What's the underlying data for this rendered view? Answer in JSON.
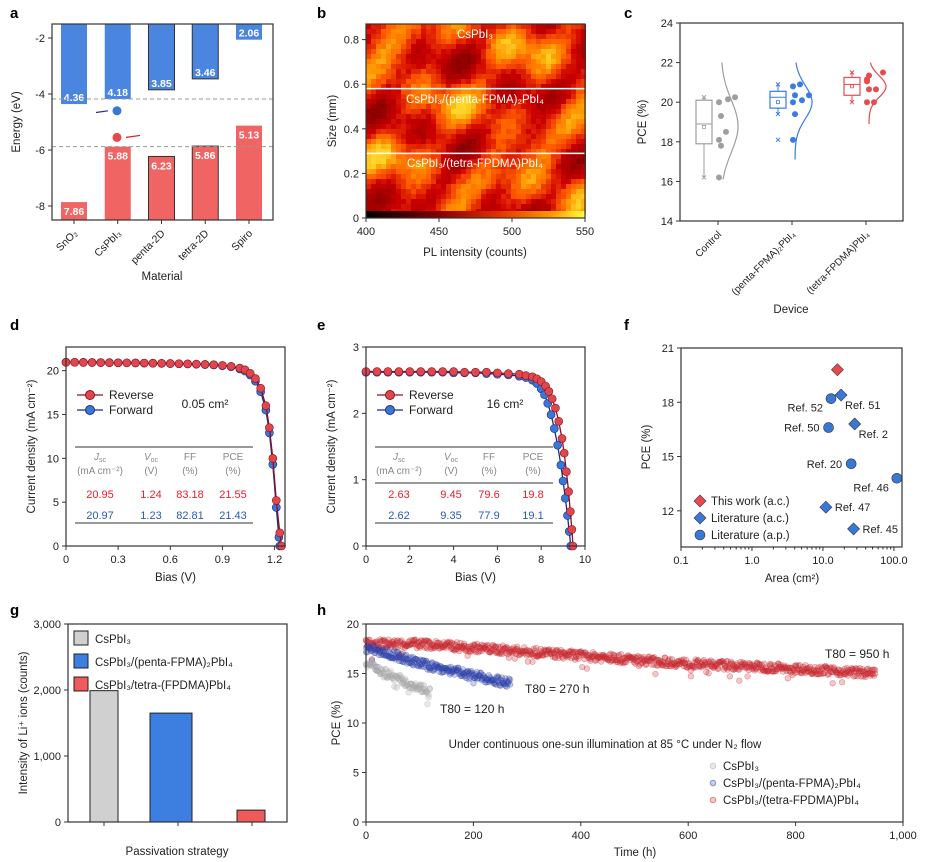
{
  "panel_labels": [
    "a",
    "b",
    "c",
    "d",
    "e",
    "f",
    "g",
    "h"
  ],
  "chart_data": [
    {
      "panel": "a",
      "type": "bar",
      "categories": [
        "SnO₂",
        "CsPbI₃",
        "penta-2D",
        "tetra-2D",
        "Spiro"
      ],
      "cbm": [
        -4.36,
        -4.18,
        -3.85,
        -3.46,
        -2.06
      ],
      "vbm": [
        -7.86,
        -5.88,
        -6.23,
        -5.86,
        -5.13
      ],
      "cbm_labels": [
        "4.36",
        "4.18",
        "3.85",
        "3.46",
        "2.06"
      ],
      "vbm_labels": [
        "7.86",
        "5.88",
        "6.23",
        "5.86",
        "5.13"
      ],
      "reference_lines": [
        -4.18,
        -5.88
      ],
      "ylabel": "Energy (eV)",
      "xlabel": "Material",
      "ylim": [
        -8.5,
        -1.5
      ],
      "yticks": [
        -2,
        -4,
        -6,
        -8
      ],
      "colors": {
        "cbm": "#4a86e0",
        "vbm": "#f06464"
      }
    },
    {
      "panel": "b",
      "type": "heatmap",
      "region_labels": [
        "CsPbI₃",
        "CsPbI₃/(penta-FPMA)₂PbI₄",
        "CsPbI₃/(tetra-FPDMA)PbI₄"
      ],
      "region_boundaries_mm": [
        0.58,
        0.29
      ],
      "xlabel": "PL intensity (counts)",
      "ylabel": "Size (mm)",
      "xlim": [
        400,
        550
      ],
      "xticks": [
        400,
        450,
        500,
        550
      ],
      "ylim": [
        0,
        0.87
      ],
      "yticks": [
        0,
        0.2,
        0.4,
        0.6,
        0.8
      ]
    },
    {
      "panel": "c",
      "type": "box",
      "categories": [
        "Control",
        "(penta-FPMA)₂PbI₄",
        "(tetra-FPDMA)PbI₄"
      ],
      "boxes": [
        {
          "q1": 17.9,
          "median": 18.9,
          "q3": 20.1,
          "mean": 18.75,
          "whisker_low": 16.2,
          "whisker_high": 20.25,
          "outliers": [],
          "points": [
            20.0,
            19.3,
            18.1,
            17.8,
            16.2,
            20.15,
            18.5,
            20.25
          ],
          "density_range": [
            16.1,
            22
          ]
        },
        {
          "q1": 19.7,
          "median": 20.25,
          "q3": 20.55,
          "mean": 20.0,
          "whisker_low": 19.4,
          "whisker_high": 20.9,
          "outliers": [
            18.1
          ],
          "points": [
            20.8,
            20.35,
            20.0,
            19.4,
            18.1,
            20.1,
            20.9,
            20.35
          ],
          "density_range": [
            17.1,
            22
          ]
        },
        {
          "q1": 20.35,
          "median": 20.9,
          "q3": 21.25,
          "mean": 20.8,
          "whisker_low": 20.0,
          "whisker_high": 21.5,
          "outliers": [],
          "points": [
            21.15,
            20.65,
            20.0,
            21.35,
            21.05,
            20.65,
            20.0,
            21.5
          ],
          "density_range": [
            18.9,
            22
          ]
        }
      ],
      "ylabel": "PCE (%)",
      "xlabel": "Device",
      "ylim": [
        14,
        24
      ],
      "yticks": [
        14,
        16,
        18,
        20,
        22,
        24
      ],
      "colors": [
        "#9e9e9e",
        "#3a7be0",
        "#e84a4f"
      ]
    },
    {
      "panel": "d",
      "type": "line",
      "series": [
        {
          "name": "Reverse",
          "color": "#e0474c",
          "points": [
            [
              0,
              20.95
            ],
            [
              0.05,
              20.95
            ],
            [
              0.1,
              20.94
            ],
            [
              0.15,
              20.93
            ],
            [
              0.2,
              20.92
            ],
            [
              0.25,
              20.91
            ],
            [
              0.3,
              20.9
            ],
            [
              0.35,
              20.89
            ],
            [
              0.4,
              20.88
            ],
            [
              0.45,
              20.87
            ],
            [
              0.5,
              20.85
            ],
            [
              0.55,
              20.84
            ],
            [
              0.6,
              20.82
            ],
            [
              0.65,
              20.8
            ],
            [
              0.7,
              20.78
            ],
            [
              0.75,
              20.75
            ],
            [
              0.8,
              20.72
            ],
            [
              0.85,
              20.68
            ],
            [
              0.9,
              20.6
            ],
            [
              0.95,
              20.5
            ],
            [
              1.0,
              20.3
            ],
            [
              1.03,
              20.1
            ],
            [
              1.06,
              19.7
            ],
            [
              1.09,
              19.1
            ],
            [
              1.12,
              18.0
            ],
            [
              1.15,
              16.0
            ],
            [
              1.17,
              13.5
            ],
            [
              1.19,
              10.0
            ],
            [
              1.21,
              5.2
            ],
            [
              1.23,
              1.5
            ],
            [
              1.24,
              0
            ]
          ]
        },
        {
          "name": "Forward",
          "color": "#3a78d6",
          "points": [
            [
              0,
              20.97
            ],
            [
              0.05,
              20.96
            ],
            [
              0.1,
              20.95
            ],
            [
              0.15,
              20.94
            ],
            [
              0.2,
              20.93
            ],
            [
              0.25,
              20.92
            ],
            [
              0.3,
              20.9
            ],
            [
              0.35,
              20.89
            ],
            [
              0.4,
              20.88
            ],
            [
              0.45,
              20.86
            ],
            [
              0.5,
              20.85
            ],
            [
              0.55,
              20.83
            ],
            [
              0.6,
              20.81
            ],
            [
              0.65,
              20.79
            ],
            [
              0.7,
              20.76
            ],
            [
              0.75,
              20.73
            ],
            [
              0.8,
              20.7
            ],
            [
              0.85,
              20.65
            ],
            [
              0.9,
              20.57
            ],
            [
              0.95,
              20.45
            ],
            [
              1.0,
              20.2
            ],
            [
              1.03,
              19.95
            ],
            [
              1.06,
              19.5
            ],
            [
              1.09,
              18.8
            ],
            [
              1.12,
              17.6
            ],
            [
              1.15,
              15.5
            ],
            [
              1.17,
              12.9
            ],
            [
              1.19,
              9.3
            ],
            [
              1.21,
              4.4
            ],
            [
              1.225,
              1.0
            ],
            [
              1.23,
              0
            ]
          ]
        }
      ],
      "area_label": "0.05 cm²",
      "table": {
        "headers": [
          [
            "J",
            "sc",
            "(mA cm⁻²)"
          ],
          [
            "V",
            "oc",
            "(V)"
          ],
          [
            "FF",
            "",
            "(%)"
          ],
          [
            "PCE",
            "",
            "(%)"
          ]
        ],
        "rows": [
          [
            "20.95",
            "1.24",
            "83.18",
            "21.55"
          ],
          [
            "20.97",
            "1.23",
            "82.81",
            "21.43"
          ]
        ]
      },
      "xlabel": "Bias (V)",
      "ylabel": "Current density (mA cm⁻²)",
      "xlim": [
        0,
        1.26
      ],
      "xticks": [
        0,
        0.3,
        0.6,
        0.9,
        1.2
      ],
      "xtick_labels": [
        "0",
        "0.3",
        "0.6",
        "0.9",
        "1.2"
      ],
      "ylim": [
        0,
        22.7
      ],
      "yticks": [
        0,
        5,
        10,
        15,
        20
      ]
    },
    {
      "panel": "e",
      "type": "line",
      "series": [
        {
          "name": "Reverse",
          "color": "#e0474c",
          "points": [
            [
              0,
              2.63
            ],
            [
              0.5,
              2.63
            ],
            [
              1,
              2.63
            ],
            [
              1.5,
              2.63
            ],
            [
              2,
              2.63
            ],
            [
              2.5,
              2.63
            ],
            [
              3,
              2.63
            ],
            [
              3.5,
              2.63
            ],
            [
              4,
              2.63
            ],
            [
              4.5,
              2.62
            ],
            [
              5,
              2.62
            ],
            [
              5.5,
              2.62
            ],
            [
              6,
              2.61
            ],
            [
              6.5,
              2.6
            ],
            [
              7,
              2.59
            ],
            [
              7.3,
              2.57
            ],
            [
              7.6,
              2.55
            ],
            [
              7.8,
              2.52
            ],
            [
              8.0,
              2.48
            ],
            [
              8.2,
              2.41
            ],
            [
              8.35,
              2.33
            ],
            [
              8.5,
              2.22
            ],
            [
              8.65,
              2.08
            ],
            [
              8.8,
              1.88
            ],
            [
              8.95,
              1.62
            ],
            [
              9.05,
              1.4
            ],
            [
              9.15,
              1.12
            ],
            [
              9.25,
              0.82
            ],
            [
              9.33,
              0.52
            ],
            [
              9.4,
              0.25
            ],
            [
              9.45,
              0
            ]
          ]
        },
        {
          "name": "Forward",
          "color": "#3a78d6",
          "points": [
            [
              0,
              2.62
            ],
            [
              0.5,
              2.62
            ],
            [
              1,
              2.62
            ],
            [
              1.5,
              2.62
            ],
            [
              2,
              2.62
            ],
            [
              2.5,
              2.62
            ],
            [
              3,
              2.62
            ],
            [
              3.5,
              2.62
            ],
            [
              4,
              2.61
            ],
            [
              4.5,
              2.61
            ],
            [
              5,
              2.61
            ],
            [
              5.5,
              2.6
            ],
            [
              6,
              2.59
            ],
            [
              6.5,
              2.58
            ],
            [
              7,
              2.56
            ],
            [
              7.3,
              2.54
            ],
            [
              7.6,
              2.5
            ],
            [
              7.8,
              2.45
            ],
            [
              8.0,
              2.37
            ],
            [
              8.15,
              2.28
            ],
            [
              8.3,
              2.15
            ],
            [
              8.45,
              1.98
            ],
            [
              8.6,
              1.77
            ],
            [
              8.75,
              1.52
            ],
            [
              8.9,
              1.22
            ],
            [
              9.0,
              0.98
            ],
            [
              9.1,
              0.72
            ],
            [
              9.2,
              0.46
            ],
            [
              9.28,
              0.22
            ],
            [
              9.35,
              0
            ]
          ]
        }
      ],
      "area_label": "16 cm²",
      "table": {
        "headers": [
          [
            "J",
            "sc",
            "(mA cm⁻²)"
          ],
          [
            "V",
            "oc",
            "(V)"
          ],
          [
            "FF",
            "",
            "(%)"
          ],
          [
            "PCE",
            "",
            "(%)"
          ]
        ],
        "rows": [
          [
            "2.63",
            "9.45",
            "79.6",
            "19.8"
          ],
          [
            "2.62",
            "9.35",
            "77.9",
            "19.1"
          ]
        ]
      },
      "xlabel": "Bias (V)",
      "ylabel": "Current density (mA cm⁻²)",
      "xlim": [
        0,
        10
      ],
      "xticks": [
        0,
        2,
        4,
        6,
        8,
        10
      ],
      "xtick_labels": [
        "0",
        "2",
        "4",
        "6",
        "8",
        "10"
      ],
      "ylim": [
        0,
        3
      ],
      "yticks": [
        0,
        1,
        2,
        3
      ]
    },
    {
      "panel": "f",
      "type": "scatter",
      "xscale": "log",
      "points": [
        {
          "area": 16,
          "pce": 19.8,
          "group": 0,
          "label": "",
          "label_side": "none"
        },
        {
          "area": 18,
          "pce": 18.4,
          "group": 1,
          "label": "Ref. 51",
          "label_side": "right-below"
        },
        {
          "area": 13,
          "pce": 18.2,
          "group": 2,
          "label": "Ref. 52",
          "label_side": "left-below"
        },
        {
          "area": 12,
          "pce": 16.6,
          "group": 2,
          "label": "Ref. 50",
          "label_side": "left"
        },
        {
          "area": 28,
          "pce": 16.8,
          "group": 1,
          "label": "Ref. 2",
          "label_side": "right-below"
        },
        {
          "area": 25,
          "pce": 14.6,
          "group": 2,
          "label": "Ref. 20",
          "label_side": "left"
        },
        {
          "area": 110,
          "pce": 13.8,
          "group": 2,
          "label": "Ref. 46",
          "label_side": "left-below"
        },
        {
          "area": 11,
          "pce": 12.2,
          "group": 1,
          "label": "Ref. 47",
          "label_side": "right"
        },
        {
          "area": 27,
          "pce": 11.0,
          "group": 1,
          "label": "Ref. 45",
          "label_side": "right"
        }
      ],
      "legend": [
        {
          "label": "This work (a.c.)",
          "marker": "diamond",
          "color": "#e8494e"
        },
        {
          "label": "Literature (a.c.)",
          "marker": "diamond",
          "color": "#3a78d6"
        },
        {
          "label": "Literature (a.p.)",
          "marker": "circle",
          "color": "#3a78d6"
        }
      ],
      "legend_position": "bottom-left",
      "xlabel": "Area (cm²)",
      "ylabel": "PCE (%)",
      "xlim": [
        0.1,
        130
      ],
      "xticks": [
        0.1,
        1,
        10,
        100
      ],
      "xtick_labels": [
        "0.1",
        "1.0",
        "10.0",
        "100.0"
      ],
      "ylim": [
        10,
        21
      ],
      "yticks": [
        12,
        15,
        18,
        21
      ]
    },
    {
      "panel": "g",
      "type": "bar",
      "categories": [
        "CsPbI₃",
        "CsPbI₃/(penta-FPMA)₂PbI₄",
        "CsPbI₃/tetra-(FPDMA)PbI₄"
      ],
      "values": [
        1990,
        1650,
        180
      ],
      "colors": [
        "#d0d0d0",
        "#3d7fe0",
        "#f05a5a"
      ],
      "legend_position": "top-left",
      "xlabel": "Passivation strategy",
      "ylabel": "Intensity of Li⁺ ions (counts)",
      "ylim": [
        0,
        3000
      ],
      "yticks": [
        0,
        1000,
        2000,
        3000
      ],
      "ytick_labels": [
        "0",
        "1,000",
        "2,000",
        "3,000"
      ]
    },
    {
      "panel": "h",
      "type": "scatter",
      "series": [
        {
          "name": "CsPbI₃",
          "color": "#a8a8a8",
          "trend": [
            [
              0,
              16.0
            ],
            [
              40,
              15.0
            ],
            [
              80,
              14.0
            ],
            [
              120,
              13.2
            ]
          ],
          "t80_label": "T80 = 120 h"
        },
        {
          "name": "CsPbI₃/(penta-FPMA)₂PbI₄",
          "color": "#2a3fa8",
          "trend": [
            [
              0,
              17.6
            ],
            [
              50,
              16.9
            ],
            [
              100,
              16.0
            ],
            [
              200,
              14.8
            ],
            [
              270,
              14.0
            ]
          ],
          "t80_label": "T80 = 270 h"
        },
        {
          "name": "CsPbI₃/(tetra-FPDMA)PbI₄",
          "color": "#c8282e",
          "trend": [
            [
              0,
              18.0
            ],
            [
              100,
              18.0
            ],
            [
              200,
              17.6
            ],
            [
              400,
              16.8
            ],
            [
              600,
              16.0
            ],
            [
              800,
              15.5
            ],
            [
              950,
              15.0
            ]
          ],
          "t80_label": "T80 = 950 h"
        }
      ],
      "annotation": "Under continuous one-sun illumination at 85 °C under N₂ flow",
      "legend_position": "bottom-right",
      "xlabel": "Time (h)",
      "ylabel": "PCE (%)",
      "xlim": [
        0,
        1000
      ],
      "xticks": [
        0,
        200,
        400,
        600,
        800,
        1000
      ],
      "xtick_labels": [
        "0",
        "200",
        "400",
        "600",
        "800",
        "1,000"
      ],
      "ylim": [
        0,
        20
      ],
      "yticks": [
        0,
        5,
        10,
        15,
        20
      ]
    }
  ]
}
